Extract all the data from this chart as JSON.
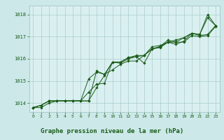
{
  "title": "Graphe pression niveau de la mer (hPa)",
  "title_fontsize": 6.5,
  "bg_color": "#cce8e8",
  "plot_bg_color": "#daf0f0",
  "grid_color": "#aacccc",
  "line_color": "#1a5c1a",
  "marker_color": "#1a5c1a",
  "label_bar_color": "#cce8e8",
  "xlim": [
    -0.5,
    23.5
  ],
  "ylim": [
    1013.6,
    1018.4
  ],
  "yticks": [
    1014,
    1015,
    1016,
    1017,
    1018
  ],
  "xticks": [
    0,
    1,
    2,
    3,
    4,
    5,
    6,
    7,
    8,
    9,
    10,
    11,
    12,
    13,
    14,
    15,
    16,
    17,
    18,
    19,
    20,
    21,
    22,
    23
  ],
  "series": [
    [
      1013.8,
      1013.8,
      1014.0,
      1014.1,
      1014.1,
      1014.1,
      1014.1,
      1014.5,
      1014.85,
      1014.9,
      1015.85,
      1015.8,
      1016.0,
      1016.1,
      1015.8,
      1016.45,
      1016.5,
      1016.75,
      1016.65,
      1016.8,
      1017.15,
      1017.1,
      1017.85,
      1017.5
    ],
    [
      1013.8,
      1013.9,
      1014.1,
      1014.1,
      1014.1,
      1014.1,
      1014.1,
      1014.1,
      1015.45,
      1015.3,
      1015.5,
      1015.75,
      1015.9,
      1015.9,
      1016.15,
      1016.45,
      1016.55,
      1016.85,
      1016.75,
      1016.95,
      1017.15,
      1017.05,
      1017.1,
      1017.5
    ],
    [
      1013.8,
      1013.9,
      1014.1,
      1014.1,
      1014.1,
      1014.1,
      1014.1,
      1015.1,
      1015.4,
      1015.3,
      1015.85,
      1015.85,
      1016.05,
      1016.1,
      1016.15,
      1016.55,
      1016.6,
      1016.75,
      1016.85,
      1016.95,
      1017.15,
      1017.1,
      1018.0,
      1017.5
    ],
    [
      1013.8,
      1013.9,
      1014.1,
      1014.1,
      1014.1,
      1014.1,
      1014.1,
      1014.1,
      1014.7,
      1015.25,
      1015.85,
      1015.85,
      1016.05,
      1016.15,
      1016.15,
      1016.45,
      1016.55,
      1016.75,
      1016.75,
      1016.75,
      1017.05,
      1017.0,
      1017.05,
      1017.45
    ]
  ]
}
